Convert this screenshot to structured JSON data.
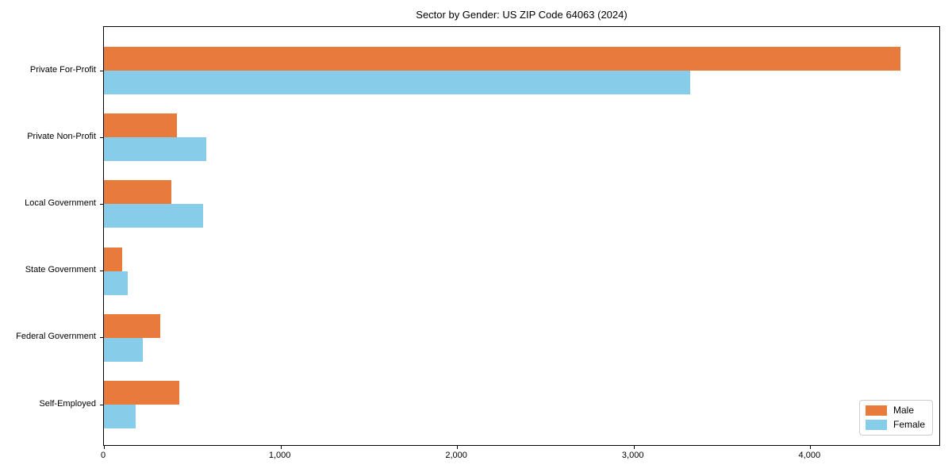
{
  "figure": {
    "title": "Sector by Gender: US ZIP Code 64063 (2024)"
  },
  "chart_data": {
    "type": "bar",
    "orientation": "horizontal",
    "title": "Sector by Gender: US ZIP Code 64063 (2024)",
    "categories": [
      "Private For-Profit",
      "Private Non-Profit",
      "Local Government",
      "State Government",
      "Federal Government",
      "Self-Employed"
    ],
    "series": [
      {
        "name": "Male",
        "color": "#e87a3c",
        "values": [
          4510,
          415,
          380,
          105,
          320,
          425
        ]
      },
      {
        "name": "Female",
        "color": "#87cde9",
        "values": [
          3320,
          580,
          560,
          135,
          220,
          180
        ]
      }
    ],
    "xlabel": "",
    "ylabel": "",
    "xlim": [
      0,
      4740
    ],
    "x_ticks": [
      0,
      1000,
      2000,
      3000,
      4000
    ],
    "x_tick_labels": [
      "0",
      "1,000",
      "2,000",
      "3,000",
      "4,000"
    ],
    "legend": {
      "position": "lower right",
      "entries": [
        "Male",
        "Female"
      ]
    },
    "grid": false,
    "colors": {
      "background": "#ffffff",
      "spine": "#000000",
      "text": "#000000",
      "legend_border": "#cccccc"
    }
  }
}
